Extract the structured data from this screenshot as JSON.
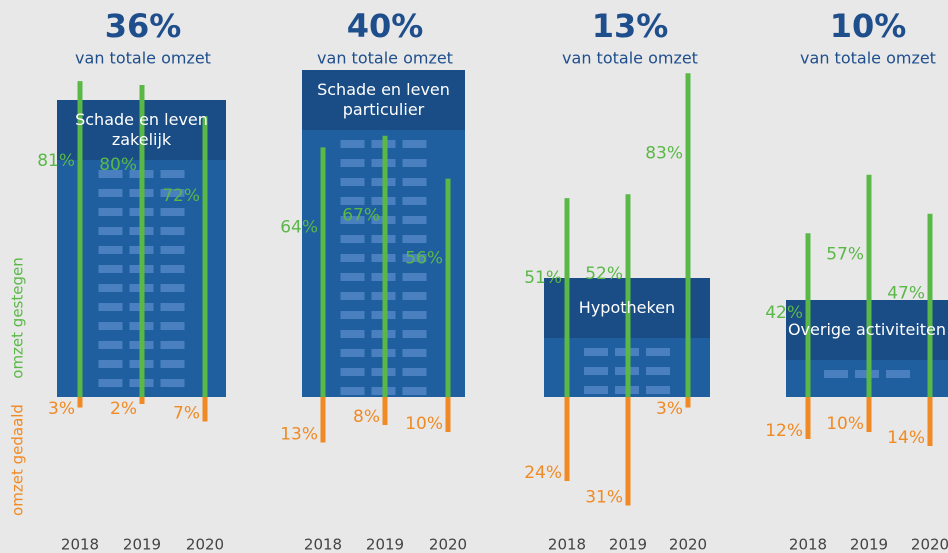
{
  "chart_data": {
    "type": "bar",
    "groups": [
      {
        "share": 36,
        "share_label": "36%",
        "subtitle": "van totale omzet",
        "name": "Schade en leven zakelijk",
        "categories": [
          "2018",
          "2019",
          "2020"
        ],
        "series": [
          {
            "name": "omzet gestegen",
            "color": "#5ab847",
            "values": [
              81,
              80,
              72
            ],
            "value_labels": [
              "81%",
              "80%",
              "72%"
            ]
          },
          {
            "name": "omzet gedaald",
            "color": "#f08a24",
            "values": [
              3,
              2,
              7
            ],
            "value_labels": [
              "3%",
              "2%",
              "7%"
            ]
          }
        ]
      },
      {
        "share": 40,
        "share_label": "40%",
        "subtitle": "van totale omzet",
        "name": "Schade en leven particulier",
        "categories": [
          "2018",
          "2019",
          "2020"
        ],
        "series": [
          {
            "name": "omzet gestegen",
            "color": "#5ab847",
            "values": [
              64,
              67,
              56
            ],
            "value_labels": [
              "64%",
              "67%",
              "56%"
            ]
          },
          {
            "name": "omzet gedaald",
            "color": "#f08a24",
            "values": [
              13,
              8,
              10
            ],
            "value_labels": [
              "13%",
              "8%",
              "10%"
            ]
          }
        ]
      },
      {
        "share": 13,
        "share_label": "13%",
        "subtitle": "van totale omzet",
        "name": "Hypotheken",
        "categories": [
          "2018",
          "2019",
          "2020"
        ],
        "series": [
          {
            "name": "omzet gestegen",
            "color": "#5ab847",
            "values": [
              51,
              52,
              83
            ],
            "value_labels": [
              "51%",
              "52%",
              "83%"
            ]
          },
          {
            "name": "omzet gedaald",
            "color": "#f08a24",
            "values": [
              24,
              31,
              3
            ],
            "value_labels": [
              "24%",
              "31%",
              "3%"
            ]
          }
        ]
      },
      {
        "share": 10,
        "share_label": "10%",
        "subtitle": "van totale omzet",
        "name": "Overige activiteiten",
        "categories": [
          "2018",
          "2019",
          "2020"
        ],
        "series": [
          {
            "name": "omzet gestegen",
            "color": "#5ab847",
            "values": [
              42,
              57,
              47
            ],
            "value_labels": [
              "42%",
              "57%",
              "47%"
            ]
          },
          {
            "name": "omzet gedaald",
            "color": "#f08a24",
            "values": [
              12,
              10,
              14
            ],
            "value_labels": [
              "12%",
              "10%",
              "14%"
            ]
          }
        ]
      }
    ]
  }
}
